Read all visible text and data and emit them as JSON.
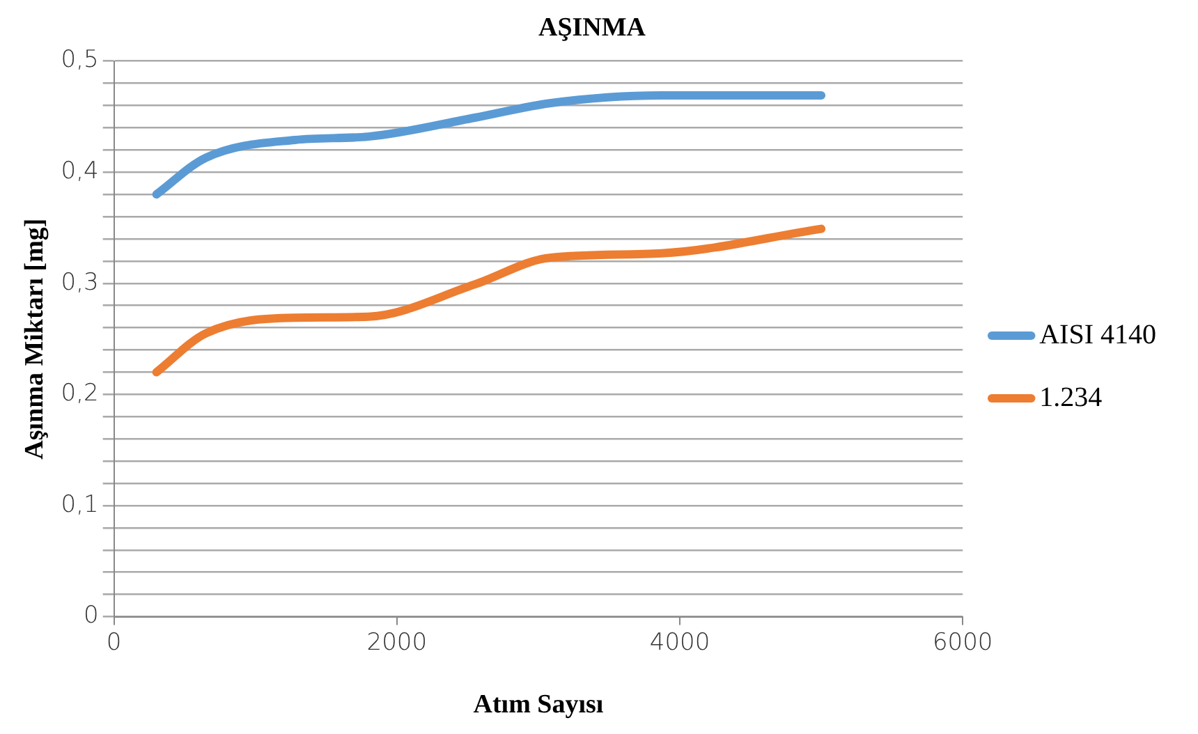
{
  "chart_data": {
    "type": "line",
    "title": "AŞINMA",
    "xlabel": "Atım Sayısı",
    "ylabel": "Aşınma Miktarı [mg]",
    "xlim": [
      0,
      6000
    ],
    "xticks": [
      0,
      2000,
      4000,
      6000
    ],
    "ylim": [
      0,
      0.5
    ],
    "yticks": [
      {
        "value": 0,
        "label": "0"
      },
      {
        "value": 0.02,
        "label": null
      },
      {
        "value": 0.04,
        "label": null
      },
      {
        "value": 0.06,
        "label": null
      },
      {
        "value": 0.08,
        "label": null
      },
      {
        "value": 0.1,
        "label": "0,1"
      },
      {
        "value": 0.12,
        "label": null
      },
      {
        "value": 0.14,
        "label": null
      },
      {
        "value": 0.16,
        "label": null
      },
      {
        "value": 0.18,
        "label": null
      },
      {
        "value": 0.2,
        "label": "0,2"
      },
      {
        "value": 0.22,
        "label": null
      },
      {
        "value": 0.24,
        "label": null
      },
      {
        "value": 0.26,
        "label": null
      },
      {
        "value": 0.28,
        "label": null
      },
      {
        "value": 0.3,
        "label": "0,3"
      },
      {
        "value": 0.32,
        "label": null
      },
      {
        "value": 0.34,
        "label": null
      },
      {
        "value": 0.36,
        "label": null
      },
      {
        "value": 0.38,
        "label": null
      },
      {
        "value": 0.4,
        "label": "0,4"
      },
      {
        "value": 0.42,
        "label": null
      },
      {
        "value": 0.44,
        "label": null
      },
      {
        "value": 0.46,
        "label": null
      },
      {
        "value": 0.48,
        "label": null
      },
      {
        "value": 0.5,
        "label": "0,5"
      }
    ],
    "x": [
      300,
      650,
      1280,
      1800,
      2550,
      3080,
      3870,
      5000
    ],
    "series": [
      {
        "name": "AISI 4140",
        "color": "#5b9bd5",
        "values": [
          0.38,
          0.413,
          0.429,
          0.432,
          0.449,
          0.462,
          0.469,
          0.469
        ]
      },
      {
        "name": "1.234",
        "color": "#ed7d31",
        "values": [
          0.22,
          0.255,
          0.269,
          0.27,
          0.299,
          0.323,
          0.327,
          0.349
        ]
      }
    ],
    "grid": "y",
    "legend": "right",
    "marker": "none",
    "line_style": "solid"
  }
}
